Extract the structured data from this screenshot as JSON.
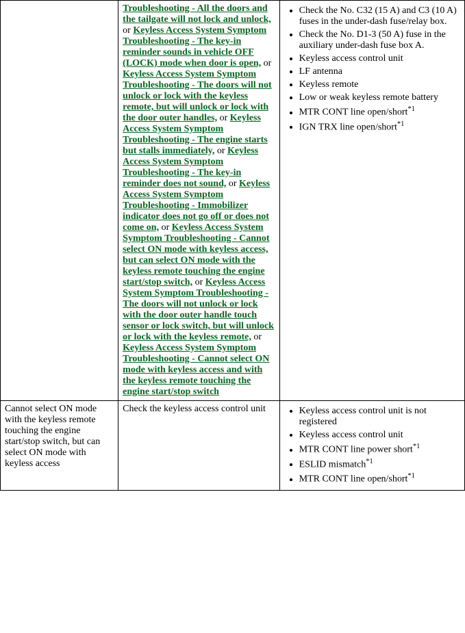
{
  "row1": {
    "col1_text": "",
    "links": [
      "Troubleshooting - All the doors and the tailgate will not lock and unlock,",
      "Keyless Access System Symptom Troubleshooting - The key-in reminder sounds in vehicle OFF (LOCK) mode when door is open,",
      "Keyless Access System Symptom Troubleshooting - The doors will not unlock or lock with the keyless remote, but will unlock or lock with the door outer handles,",
      "Keyless Access System Symptom Troubleshooting - The engine starts but stalls immediately,",
      "Keyless Access System Symptom Troubleshooting - The key-in reminder does not sound,",
      "Keyless Access System Symptom Troubleshooting - Immobilizer indicator does not go off or does not come on,",
      "Keyless Access System Symptom Troubleshooting - Cannot select ON mode with keyless access, but can select ON mode with the keyless remote touching the engine start/stop switch,",
      "Keyless Access System Symptom Troubleshooting - The doors will not unlock or lock with the door outer handle touch sensor or lock switch, but will unlock or lock with the keyless remote,",
      "Keyless Access System Symptom Troubleshooting - Cannot select ON mode with keyless access and with the keyless remote touching the engine start/stop switch"
    ],
    "or_text": " or ",
    "checks": [
      "Check the No. C32 (15 A) and C3 (10 A) fuses in the under-dash fuse/relay box.",
      "Check the No. D1-3 (50 A) fuse in the auxiliary under-dash fuse box A.",
      "Keyless access control unit",
      "LF antenna",
      "Keyless remote",
      "Low or weak keyless remote battery",
      "MTR CONT line open/short",
      "IGN TRX line open/short"
    ],
    "sup": "*1"
  },
  "row2": {
    "symptom": "Cannot select ON mode with the keyless remote touching the engine start/stop switch, but can select ON mode with keyless access",
    "diagnosis": "Check the keyless access control unit",
    "checks": [
      "Keyless access control unit is not registered",
      "Keyless access control unit",
      "MTR CONT line power short",
      "ESLID mismatch",
      "MTR CONT line open/short"
    ],
    "sup": "*1"
  }
}
